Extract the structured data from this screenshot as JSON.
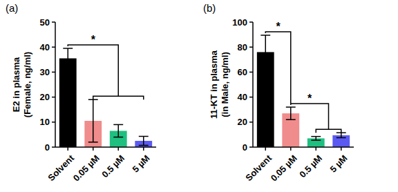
{
  "chart_data": [
    {
      "type": "bar",
      "title": "(a)",
      "y_label": [
        "E2 in plasma",
        "(Female, ng/ml)"
      ],
      "categories": [
        "Solvent",
        "0.05 µM",
        "0.5 µM",
        "5 µM"
      ],
      "values": [
        35.5,
        10.5,
        6.5,
        2.5
      ],
      "errors": [
        4,
        8.5,
        2.5,
        1.8
      ],
      "colors": [
        "#000000",
        "#f08c8c",
        "#1fbf80",
        "#5a5af2"
      ],
      "ylim": [
        0,
        50
      ],
      "yticks": [
        0,
        10,
        20,
        30,
        40,
        50
      ],
      "annotations": [
        {
          "text": "*",
          "from": "Solvent",
          "to": [
            "0.05 µM",
            "5 µM"
          ]
        }
      ]
    },
    {
      "type": "bar",
      "title": "(b)",
      "y_label": [
        "11-KT in plasma",
        "(in Male, ng/ml)"
      ],
      "categories": [
        "Solvent",
        "0.05 µM",
        "0.5 µM",
        "5 µM"
      ],
      "values": [
        76,
        27,
        7,
        9.5
      ],
      "errors": [
        13.5,
        5,
        1.5,
        2
      ],
      "colors": [
        "#000000",
        "#f08c8c",
        "#1fbf80",
        "#5a5af2"
      ],
      "ylim": [
        0,
        100
      ],
      "yticks": [
        0,
        20,
        40,
        60,
        80,
        100
      ],
      "annotations": [
        {
          "text": "*",
          "from": "Solvent",
          "to": [
            "0.05 µM",
            "0.05 µM"
          ]
        },
        {
          "text": "*",
          "from": "0.05 µM",
          "to": [
            "0.5 µM",
            "5 µM"
          ]
        }
      ]
    }
  ]
}
